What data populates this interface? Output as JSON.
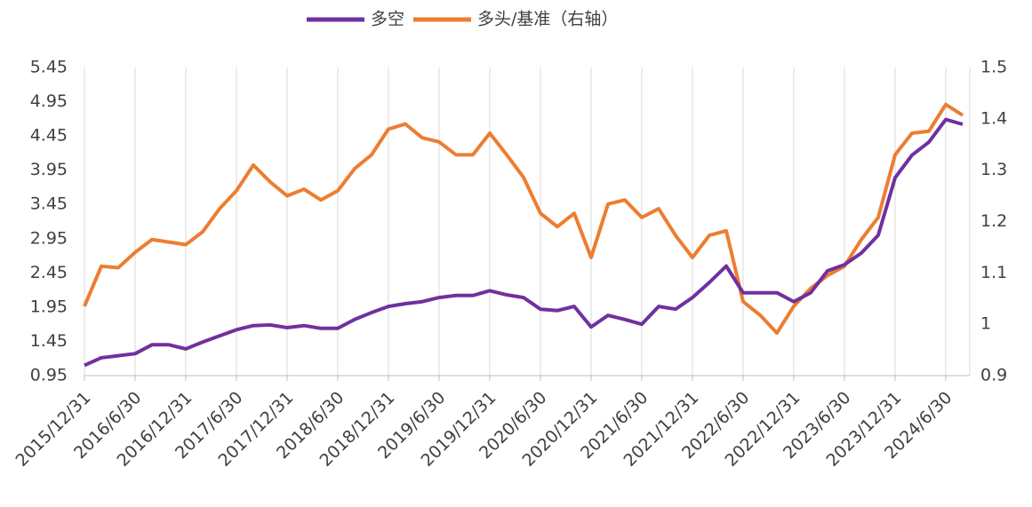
{
  "chart_data": {
    "type": "line",
    "categories": [
      "2015/12/31",
      null,
      null,
      "2016/6/30",
      null,
      null,
      "2016/12/31",
      null,
      null,
      "2017/6/30",
      null,
      null,
      "2017/12/31",
      null,
      null,
      "2018/6/30",
      null,
      null,
      "2018/12/31",
      null,
      null,
      "2019/6/30",
      null,
      null,
      "2019/12/31",
      null,
      null,
      "2020/6/30",
      null,
      null,
      "2020/12/31",
      null,
      null,
      "2021/6/30",
      null,
      null,
      "2021/12/31",
      null,
      null,
      "2022/6/30",
      null,
      null,
      "2022/12/31",
      null,
      null,
      "2023/6/30",
      null,
      null,
      "2023/12/31",
      null,
      null,
      "2024/6/30",
      null
    ],
    "series": [
      {
        "name": "多空",
        "color": "#7030a0",
        "values": [
          1.1,
          1.21,
          1.24,
          1.27,
          1.4,
          1.4,
          1.34,
          1.44,
          1.53,
          1.62,
          1.68,
          1.69,
          1.65,
          1.68,
          1.64,
          1.64,
          1.77,
          1.87,
          1.96,
          2.0,
          2.03,
          2.09,
          2.12,
          2.12,
          2.19,
          2.13,
          2.09,
          1.92,
          1.9,
          1.96,
          1.66,
          1.83,
          1.77,
          1.7,
          1.96,
          1.92,
          2.09,
          2.31,
          2.55,
          2.16,
          2.16,
          2.16,
          2.03,
          2.16,
          2.48,
          2.57,
          2.74,
          3.0,
          3.84,
          4.17,
          4.36,
          4.69,
          4.62
        ]
      },
      {
        "name": "多头/基准（右轴）",
        "color": "#ed7d31",
        "axis": "y2",
        "values": [
          1.035,
          1.113,
          1.11,
          1.14,
          1.165,
          1.16,
          1.155,
          1.18,
          1.225,
          1.26,
          1.31,
          1.277,
          1.25,
          1.263,
          1.242,
          1.26,
          1.303,
          1.33,
          1.38,
          1.39,
          1.363,
          1.355,
          1.33,
          1.33,
          1.372,
          1.33,
          1.286,
          1.216,
          1.19,
          1.216,
          1.13,
          1.234,
          1.242,
          1.208,
          1.225,
          1.173,
          1.13,
          1.173,
          1.182,
          1.044,
          1.018,
          0.983,
          1.035,
          1.07,
          1.095,
          1.113,
          1.165,
          1.208,
          1.33,
          1.372,
          1.376,
          1.428,
          1.407
        ]
      }
    ],
    "ylim": [
      0.95,
      5.45
    ],
    "yticks": [
      0.95,
      1.45,
      1.95,
      2.45,
      2.95,
      3.45,
      3.95,
      4.45,
      4.95,
      5.45
    ],
    "y2lim": [
      0.9,
      1.5
    ],
    "y2ticks": [
      0.9,
      1,
      1.1,
      1.2,
      1.3,
      1.4,
      1.5
    ],
    "grid": "x",
    "legend": "top"
  }
}
